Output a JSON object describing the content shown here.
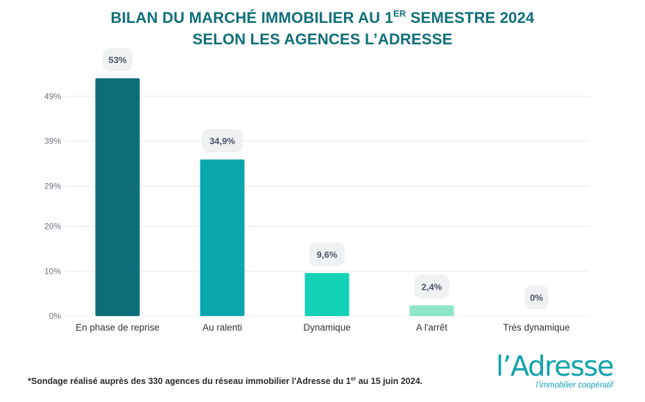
{
  "title": {
    "line1_prefix": "BILAN DU MARCHÉ IMMOBILIER AU 1",
    "line1_sup": "ER",
    "line1_suffix": " SEMESTRE 2024",
    "line2": "SELON LES AGENCES L’ADRESSE"
  },
  "chart_data": {
    "type": "bar",
    "title": "BILAN DU MARCHÉ IMMOBILIER AU 1ER SEMESTRE 2024 SELON LES AGENCES L’ADRESSE",
    "categories": [
      "En phase de reprise",
      "Au ralenti",
      "Dynamique",
      "A l'arrêt",
      "Très dynamique"
    ],
    "values": [
      53,
      34.9,
      9.6,
      2.4,
      0
    ],
    "value_labels": [
      "53%",
      "34,9%",
      "9,6%",
      "2,4%",
      "0%"
    ],
    "bar_colors": [
      "#0d6e79",
      "#0aa6ae",
      "#12d2b8",
      "#8ee6c7",
      "#c9f1e2"
    ],
    "yticks": [
      0,
      10,
      20,
      29,
      39,
      49
    ],
    "ytick_labels": [
      "0%",
      "10%",
      "20%",
      "29%",
      "39%",
      "49%"
    ],
    "ylim": [
      0,
      53
    ],
    "xlabel": "",
    "ylabel": "",
    "grid": true,
    "legend": "none"
  },
  "footnote": {
    "prefix": "*Sondage réalisé auprès des 330 agences du réseau immobilier l'Adresse du 1",
    "sup": "er",
    "suffix": " au 15 juin 2024."
  },
  "logo": {
    "wordmark": "l’Adresse",
    "tagline": "l’immobilier coopératif"
  }
}
